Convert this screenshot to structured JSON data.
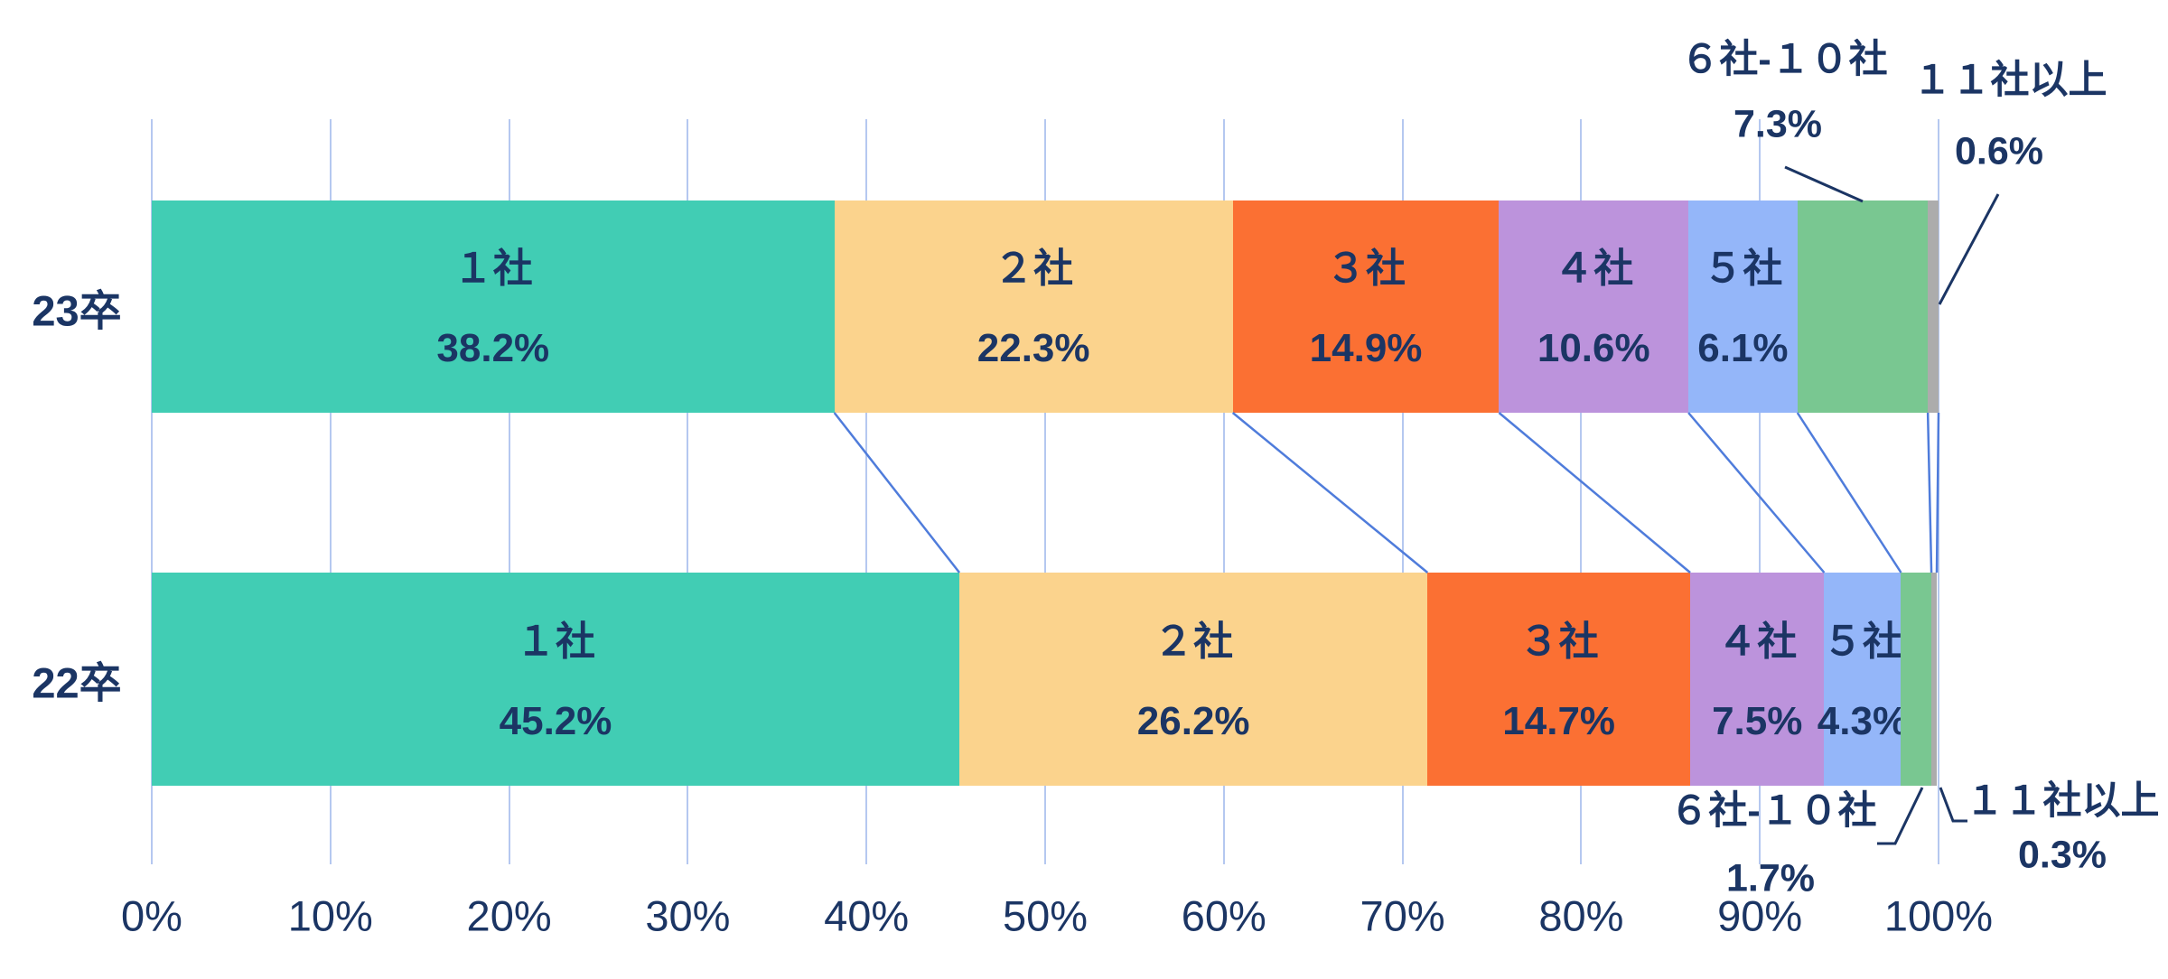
{
  "chart_data": {
    "type": "bar",
    "variant": "horizontal-stacked",
    "title": "",
    "categories": [
      "23卒",
      "22卒"
    ],
    "series": [
      {
        "name": "１社",
        "values": [
          38.2,
          45.2
        ],
        "color": "#41CDB4",
        "label_inside": true
      },
      {
        "name": "２社",
        "values": [
          22.3,
          26.2
        ],
        "color": "#FBD38D",
        "label_inside": true
      },
      {
        "name": "３社",
        "values": [
          14.9,
          14.7
        ],
        "color": "#FB7033",
        "label_inside": true
      },
      {
        "name": "４社",
        "values": [
          10.6,
          7.5
        ],
        "color": "#BC93DC",
        "label_inside": true
      },
      {
        "name": "５社",
        "values": [
          6.1,
          4.3
        ],
        "color": "#94B6F9",
        "label_inside": true
      },
      {
        "name": "６社-１０社",
        "values": [
          7.3,
          1.7
        ],
        "color": "#79C791",
        "label_inside": false
      },
      {
        "name": "１１社以上",
        "values": [
          0.6,
          0.3
        ],
        "color": "#ACACAC",
        "label_inside": false
      }
    ],
    "value_suffix": "%",
    "x_axis": {
      "min": 0,
      "max": 100,
      "tick_labels": [
        "0%",
        "10%",
        "20%",
        "30%",
        "40%",
        "50%",
        "60%",
        "70%",
        "80%",
        "90%",
        "100%"
      ]
    },
    "grid": true,
    "legend_position": "none",
    "annotations": [
      {
        "row": 0,
        "label": "６社-１０社",
        "value": "7.3%",
        "position": "above"
      },
      {
        "row": 0,
        "label": "１１社以上",
        "value": "0.6%",
        "position": "above"
      },
      {
        "row": 1,
        "label": "６社-１０社",
        "value": "1.7%",
        "position": "below"
      },
      {
        "row": 1,
        "label": "１１社以上",
        "value": "0.3%",
        "position": "below"
      }
    ],
    "colors": {
      "text": "#1B3564",
      "gridline": "#B5C8F0",
      "connector": "#4F7CDB",
      "leader": "#1B3564",
      "background": "#FFFFFF"
    }
  }
}
